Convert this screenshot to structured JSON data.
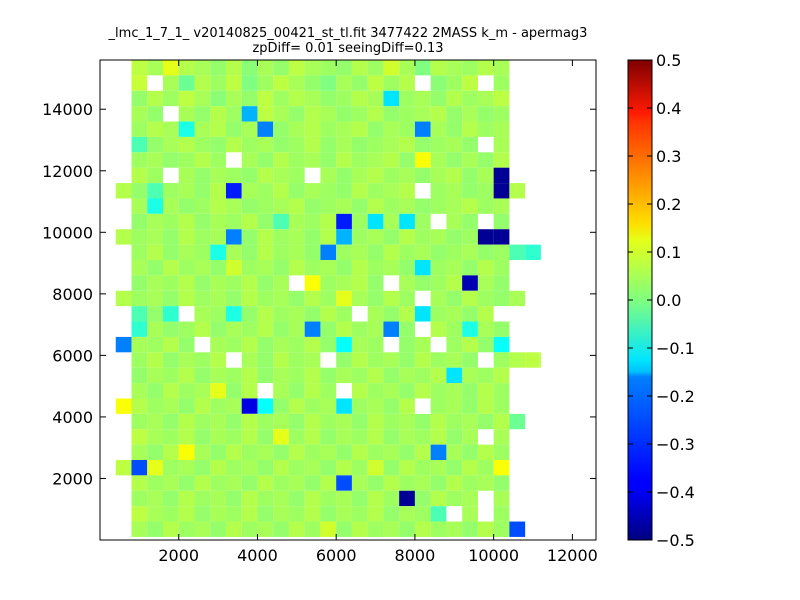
{
  "chart_data": {
    "type": "heatmap",
    "title_line1": "_lmc_1_7_1_ v20140825_00421_st_tl.fit 3477422 2MASS k_m - apermag3",
    "title_line2": "zpDiff= 0.01 seeingDiff=0.13",
    "xlabel": "",
    "ylabel": "",
    "xlim": [
      0,
      12600
    ],
    "ylim": [
      0,
      15600
    ],
    "x_ticks": [
      2000,
      4000,
      6000,
      8000,
      10000,
      12000
    ],
    "y_ticks": [
      2000,
      4000,
      6000,
      8000,
      10000,
      12000,
      14000
    ],
    "colormap": "jet",
    "clim": [
      -0.5,
      0.5
    ],
    "colorbar_ticks": [
      0.5,
      0.4,
      0.3,
      0.2,
      0.1,
      0.0,
      -0.1,
      -0.2,
      -0.3,
      -0.4,
      -0.5
    ],
    "colorbar_tick_labels": [
      "0.5",
      "0.4",
      "0.3",
      "0.2",
      "0.1",
      "0.0",
      "−0.1",
      "−0.2",
      "−0.3",
      "−0.4",
      "−0.5"
    ],
    "bin_size": [
      400,
      500
    ],
    "rows_top_to_bottom": [
      "....... 0.06 0.04 0.10 0.05 0.04 0.02 0.05 0.01 0.04 0.02 0.06 0.04 0.03 0.02 0.05 0.03 0.08 0.04 0.00 0.05 0.04 0.03 0.05 0.04 ..",
      "....... 0.07 NaN 0.04 -0.02 0.05 0.03 0.06 0.00 0.03 0.06 0.04 0.02 0.00 0.04 0.02 0.06 0.03 0.05 NaN 0.01 0.03 0.06 NaN 0.03 ..",
      "....... 0.02 0.05 0.03 0.06 0.04 0.01 0.04 0.02 0.06 0.03 0.05 0.04 0.02 0.03 0.05 0.04 -0.15 0.03 0.04 0.02 0.05 0.03 0.04 0.06 ..",
      "....... 0.04 0.02 NaN 0.04 0.02 0.05 0.03 -0.20 0.06 0.04 0.02 0.05 0.04 0.02 0.03 0.05 0.02 0.03 0.04 0.05 0.02 0.04 0.02 0.03 ..",
      "....... 0.03 0.05 0.04 -0.10 0.04 0.05 0.02 0.04 -0.25 0.02 0.04 0.05 0.03 0.04 0.05 0.02 0.04 0.03 -0.25 0.04 0.02 0.05 0.03 0.04 ..",
      "....... -0.05 0.02 0.04 0.05 0.03 0.02 0.05 0.03 0.04 0.02 0.03 0.05 0.02 0.04 0.02 0.03 0.04 0.05 0.02 0.03 0.04 0.02 NaN 0.04 ..",
      "....... 0.03 0.04 0.02 0.03 0.05 0.03 NaN 0.04 0.02 0.05 0.03 0.04 0.02 0.05 0.03 0.04 0.05 0.02 0.12 0.04 0.02 0.04 0.02 0.05 ..",
      "....... 0.05 0.03 NaN 0.04 0.02 0.04 0.03 0.02 0.05 0.04 0.03 NaN 0.04 0.02 0.04 0.05 0.03 0.04 0.02 0.04 0.05 0.02 0.04 -0.48 ..",
      "...... 0.05 0.02 -0.05 0.03 0.04 0.02 0.05 -0.35 0.04 0.03 0.05 0.02 0.04 0.03 0.02 0.05 0.03 0.04 0.05 NaN 0.03 0.04 0.02 0.03 -0.48 0.05",
      "....... 0.04 -0.10 0.04 0.02 0.03 0.05 0.04 0.02 0.03 0.04 0.05 0.02 0.03 0.04 0.02 0.05 0.03 0.04 0.02 0.03 0.04 0.05 0.03 0.04 ..",
      "....... 0.02 0.04 0.03 0.05 0.02 0.04 0.03 0.05 0.02 -0.05 0.04 0.03 0.05 -0.35 0.03 -0.15 0.04 -0.15 0.03 NaN 0.04 0.02 NaN 0.02 ..",
      "...... 0.05 0.03 0.04 0.02 0.05 0.03 0.04 -0.25 0.02 0.05 0.03 0.04 0.02 0.05 -0.20 0.03 0.04 0.02 0.05 0.03 0.04 0.02 0.03 -0.48 -0.48 ..",
      "....... 0.03 0.05 0.02 0.04 0.03 -0.10 0.04 0.02 0.05 0.03 0.04 0.02 -0.25 0.03 0.04 0.02 0.05 0.03 0.04 0.02 0.03 0.04 0.02 0.03 -0.05 -0.08",
      "....... 0.04 0.02 0.05 0.03 0.04 0.02 0.08 0.03 0.04 0.02 0.05 0.03 0.04 0.02 0.05 0.03 0.04 0.02 -0.15 0.03 0.04 0.02 0.05 0.03 ..",
      "....... 0.02 0.04 0.03 0.05 0.02 0.04 0.03 0.05 0.02 0.04 NaN 0.12 0.03 0.04 0.05 0.02 NaN 0.04 0.02 0.03 0.05 -0.45 0.04 0.02 ..",
      "...... 0.05 0.03 0.04 0.02 0.05 0.03 0.04 0.02 0.05 0.03 0.04 0.02 0.05 0.03 0.10 0.04 0.02 0.05 0.03 NaN 0.04 0.02 0.05 0.03 0.02 0.04",
      "....... -0.05 0.02 -0.08 NaN 0.04 0.03 -0.10 0.02 0.05 0.03 0.04 0.02 0.05 0.03 NaN 0.04 0.02 0.05 -0.15 0.03 0.04 0.02 0.05 NaN ..",
      "....... -0.08 0.04 0.02 0.03 0.05 0.02 0.04 0.03 0.05 0.02 0.04 -0.25 0.02 0.05 0.03 0.04 -0.25 0.02 NaN 0.05 0.03 -0.10 0.04 0.02 ..",
      "...... -0.25 0.04 0.03 0.05 0.02 NaN 0.04 0.03 0.05 0.02 0.04 0.03 0.05 0.02 -0.12 0.04 0.03 NaN 0.02 0.04 NaN 0.03 0.05 0.02 -0.12 ..",
      "....... 0.03 0.05 0.02 0.04 0.03 0.05 NaN 0.04 0.02 0.05 0.03 0.04 NaN 0.02 0.05 0.03 0.04 0.02 0.05 0.03 0.04 0.02 NaN 0.03 0.05 0.06",
      "....... 0.02 0.04 0.03 0.05 0.02 0.04 0.03 0.05 0.02 0.04 0.03 0.05 0.02 0.04 0.03 0.05 0.02 0.04 0.03 0.05 -0.15 0.04 0.03 0.05 ..",
      "....... 0.04 0.02 0.05 0.03 0.04 0.10 0.02 0.05 NaN 0.04 0.02 0.05 0.03 NaN 0.05 0.03 0.04 0.02 0.05 0.03 0.04 0.02 0.05 0.03 ..",
      "...... 0.12 0.05 0.03 0.04 0.02 0.05 0.03 0.04 -0.40 -0.12 0.02 0.05 0.03 0.04 -0.15 0.03 0.04 0.02 0.05 NaN 0.03 0.04 0.02 0.05 0.03 ..",
      "....... 0.03 0.04 0.02 0.05 0.03 0.04 0.02 0.05 0.03 0.04 0.02 0.05 0.03 0.04 0.02 0.05 0.03 0.04 0.02 0.05 0.03 0.04 0.02 0.05 -0.02 ..",
      "....... 0.06 0.04 0.03 0.05 0.02 0.04 0.03 0.05 0.02 0.10 0.03 0.05 0.02 0.04 0.03 0.05 0.02 0.04 0.03 0.05 0.02 0.04 NaN 0.04 ..",
      "....... 0.04 0.02 0.05 0.12 0.04 0.02 0.05 0.03 0.04 0.02 0.05 0.03 0.04 0.02 0.05 0.03 0.04 0.02 0.05 -0.25 0.04 0.02 0.05 0.03 ..",
      "...... 0.06 -0.30 0.10 0.03 0.04 0.02 0.05 0.03 0.04 0.02 0.05 0.03 0.04 0.02 0.05 0.03 0.08 0.02 0.05 0.03 0.04 0.02 0.05 0.03 0.12 ..",
      "....... 0.05 0.03 0.04 0.02 0.05 0.03 0.04 0.02 0.05 0.03 0.04 0.02 0.05 -0.30 0.04 0.02 0.05 0.03 0.04 0.02 0.05 0.03 0.04 0.02 ..",
      "....... 0.03 0.04 0.02 0.05 0.03 0.04 0.02 0.05 0.03 0.04 0.02 0.05 0.03 0.04 0.02 0.05 0.03 -0.48 0.02 0.05 0.03 0.04 NaN 0.04 ..",
      "....... 0.06 0.04 0.03 0.05 0.02 0.04 0.03 0.05 0.02 0.04 0.03 0.05 0.02 0.04 0.03 0.05 0.02 0.04 0.03 -0.05 NaN 0.04 NaN 0.03 ..",
      "....... 0.04 0.02 0.05 0.03 0.04 0.02 0.05 0.03 0.04 0.02 0.05 0.03 0.08 0.02 0.05 0.03 0.04 0.02 0.05 0.03 0.04 0.02 0.05 0.03 -0.30 .."
    ]
  }
}
